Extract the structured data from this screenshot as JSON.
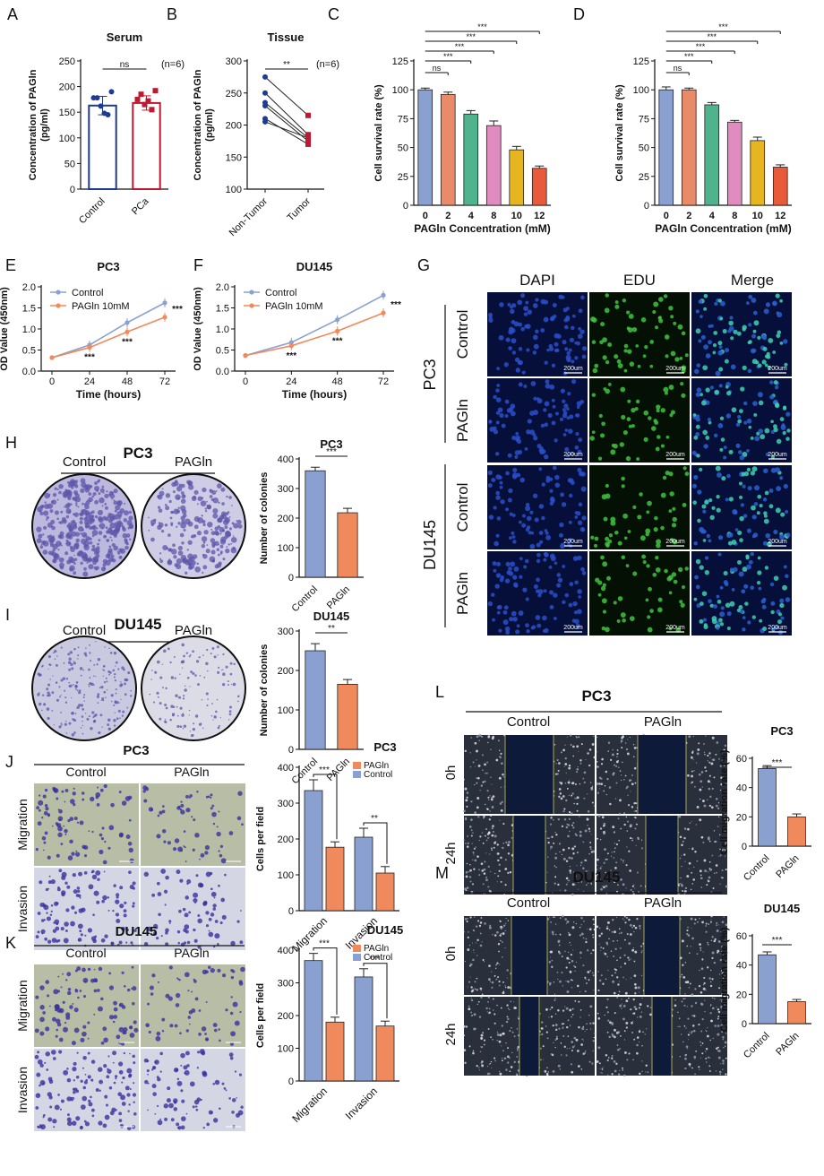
{
  "colors": {
    "control_bar": "#8aa0d0",
    "pagln_bar": "#f08a5d",
    "dose_bars": [
      "#8aa0d0",
      "#e98a68",
      "#4fb38e",
      "#e08cc0",
      "#e6b520",
      "#e95a3b"
    ],
    "line_control": "#8aa0d0",
    "line_pagln": "#f08a5d",
    "serum_control_dot": "#1f3a93",
    "serum_pca_dot": "#c0182f",
    "colony_stain": "#5d55a8",
    "dapi": "#1e3a9a",
    "edu": "#3fc33f",
    "transwell_stain": "#3a2f9e",
    "wound_gap": "#0e1a3a"
  },
  "panel_letters": [
    "A",
    "B",
    "C",
    "D",
    "E",
    "F",
    "G",
    "H",
    "I",
    "J",
    "K",
    "L",
    "M"
  ],
  "panelG": {
    "columns": [
      "DAPI",
      "EDU",
      "Merge"
    ],
    "groups": [
      "PC3",
      "DU145"
    ],
    "rows": [
      "Control",
      "PAGln",
      "Control",
      "PAGln"
    ],
    "scalebar": "200um"
  },
  "panelH": {
    "title": "PC3",
    "labels": [
      "Control",
      "PAGln"
    ]
  },
  "panelI": {
    "title": "DU145",
    "labels": [
      "Control",
      "PAGln"
    ]
  },
  "panelJ": {
    "title": "PC3",
    "columns": [
      "Control",
      "PAGln"
    ],
    "rows": [
      "Migration",
      "Invasion"
    ]
  },
  "panelK": {
    "title": "DU145",
    "columns": [
      "Control",
      "PAGln"
    ],
    "rows": [
      "Migration",
      "Invasion"
    ]
  },
  "panelL": {
    "title": "PC3",
    "columns": [
      "Control",
      "PAGln"
    ],
    "rows": [
      "0h",
      "24h"
    ]
  },
  "panelM": {
    "title": "DU145",
    "columns": [
      "Control",
      "PAGln"
    ],
    "rows": [
      "0h",
      "24h"
    ]
  },
  "chart_data": [
    {
      "id": "A",
      "type": "bar",
      "title": "Serum",
      "ylabel": "Concentration of PAGln\n(pg/ml)",
      "ylim": [
        0,
        250
      ],
      "yticks": [
        0,
        50,
        100,
        150,
        200,
        250
      ],
      "categories": [
        "Control",
        "PCa"
      ],
      "values": [
        163,
        168
      ],
      "errors": [
        18,
        14
      ],
      "points": [
        [
          178,
          178,
          162,
          148,
          145,
          190
        ],
        [
          175,
          185,
          165,
          172,
          155,
          192
        ]
      ],
      "note": "(n=6)",
      "sig": [
        {
          "a": 0,
          "b": 1,
          "text": "ns"
        }
      ]
    },
    {
      "id": "B",
      "type": "line",
      "title": "Tissue",
      "ylabel": "Concentration of PAGln\n(pg/ml)",
      "ylim": [
        100,
        300
      ],
      "yticks": [
        100,
        150,
        200,
        250,
        300
      ],
      "categories": [
        "Non-Tumor",
        "Tumor"
      ],
      "pairs": [
        [
          275,
          215
        ],
        [
          250,
          185
        ],
        [
          235,
          180
        ],
        [
          230,
          175
        ],
        [
          210,
          170
        ],
        [
          205,
          180
        ]
      ],
      "note": "(n=6)",
      "sig": [
        {
          "a": 0,
          "b": 1,
          "text": "**"
        }
      ]
    },
    {
      "id": "C",
      "type": "bar",
      "title": "PC3",
      "xlabel": "PAGln Concentration (mM)",
      "ylabel": "Cell survival rate (%)",
      "ylim": [
        0,
        125
      ],
      "yticks": [
        0,
        25,
        50,
        75,
        100,
        125
      ],
      "categories": [
        "0",
        "2",
        "4",
        "8",
        "10",
        "12"
      ],
      "values": [
        100,
        96,
        79,
        69,
        48,
        32
      ],
      "errors": [
        1.5,
        2,
        3,
        4,
        3,
        2
      ],
      "sig": [
        {
          "a": 0,
          "b": 1,
          "text": "ns"
        },
        {
          "a": 0,
          "b": 2,
          "text": "***"
        },
        {
          "a": 0,
          "b": 3,
          "text": "***"
        },
        {
          "a": 0,
          "b": 4,
          "text": "***"
        },
        {
          "a": 0,
          "b": 5,
          "text": "***"
        }
      ]
    },
    {
      "id": "D",
      "type": "bar",
      "title": "DU145",
      "xlabel": "PAGln Concentration (mM)",
      "ylabel": "Cell survival rate (%)",
      "ylim": [
        0,
        125
      ],
      "yticks": [
        0,
        25,
        50,
        75,
        100,
        125
      ],
      "categories": [
        "0",
        "2",
        "4",
        "8",
        "10",
        "12"
      ],
      "values": [
        100,
        100,
        87,
        72,
        56,
        33
      ],
      "errors": [
        2.5,
        1.5,
        2,
        1.5,
        3,
        2
      ],
      "sig": [
        {
          "a": 0,
          "b": 1,
          "text": "ns"
        },
        {
          "a": 0,
          "b": 2,
          "text": "***"
        },
        {
          "a": 0,
          "b": 3,
          "text": "***"
        },
        {
          "a": 0,
          "b": 4,
          "text": "***"
        },
        {
          "a": 0,
          "b": 5,
          "text": "***"
        }
      ]
    },
    {
      "id": "E",
      "type": "line",
      "title": "PC3",
      "xlabel": "Time (hours)",
      "ylabel": "OD Value (450nm)",
      "ylim": [
        0,
        2.0
      ],
      "yticks": [
        0.0,
        0.5,
        1.0,
        1.5,
        2.0
      ],
      "x": [
        0,
        24,
        48,
        72
      ],
      "series": [
        {
          "name": "Control",
          "values": [
            0.32,
            0.62,
            1.15,
            1.62
          ]
        },
        {
          "name": "PAGln 10mM",
          "values": [
            0.32,
            0.56,
            0.93,
            1.28
          ]
        }
      ],
      "stars": [
        "***",
        "***",
        "***"
      ]
    },
    {
      "id": "F",
      "type": "line",
      "title": "DU145",
      "xlabel": "Time (hours)",
      "ylabel": "OD Value (450nm)",
      "ylim": [
        0,
        2.0
      ],
      "yticks": [
        0.0,
        0.5,
        1.0,
        1.5,
        2.0
      ],
      "x": [
        0,
        24,
        48,
        72
      ],
      "series": [
        {
          "name": "Control",
          "values": [
            0.37,
            0.68,
            1.22,
            1.8
          ]
        },
        {
          "name": "PAGln 10mM",
          "values": [
            0.37,
            0.6,
            0.95,
            1.38
          ]
        }
      ],
      "stars": [
        "***",
        "***",
        "***"
      ]
    },
    {
      "id": "H",
      "type": "bar",
      "title": "PC3",
      "ylabel": "Number of colonies",
      "ylim": [
        0,
        400
      ],
      "yticks": [
        0,
        100,
        200,
        300,
        400
      ],
      "categories": [
        "Control",
        "PAGln"
      ],
      "values": [
        360,
        218
      ],
      "errors": [
        12,
        15
      ],
      "sig": [
        {
          "a": 0,
          "b": 1,
          "text": "***"
        }
      ]
    },
    {
      "id": "I",
      "type": "bar",
      "title": "DU145",
      "ylabel": "Number of colonies",
      "ylim": [
        0,
        300
      ],
      "yticks": [
        0,
        100,
        200,
        300
      ],
      "categories": [
        "Control",
        "PAGln"
      ],
      "values": [
        250,
        165
      ],
      "errors": [
        18,
        12
      ],
      "sig": [
        {
          "a": 0,
          "b": 1,
          "text": "**"
        }
      ]
    },
    {
      "id": "J",
      "type": "bar",
      "title": "PC3",
      "ylabel": "Cells per field",
      "ylim": [
        0,
        400
      ],
      "yticks": [
        0,
        100,
        200,
        300,
        400
      ],
      "categories": [
        "Migration",
        "Invasion"
      ],
      "series": [
        {
          "name": "Control",
          "values": [
            335,
            205
          ],
          "errors": [
            30,
            25
          ]
        },
        {
          "name": "PAGln",
          "values": [
            177,
            105
          ],
          "errors": [
            15,
            18
          ]
        }
      ],
      "legend": [
        "PAGln",
        "Control"
      ],
      "sig": [
        "***",
        "**"
      ]
    },
    {
      "id": "K",
      "type": "bar",
      "title": "DU145",
      "ylabel": "Cells per field",
      "ylim": [
        0,
        400
      ],
      "yticks": [
        0,
        100,
        200,
        300,
        400
      ],
      "categories": [
        "Migration",
        "Invasion"
      ],
      "series": [
        {
          "name": "Control",
          "values": [
            368,
            318
          ],
          "errors": [
            22,
            25
          ]
        },
        {
          "name": "PAGln",
          "values": [
            180,
            168
          ],
          "errors": [
            15,
            15
          ]
        }
      ],
      "legend": [
        "PAGln",
        "Control"
      ],
      "sig": [
        "***",
        "***"
      ]
    },
    {
      "id": "L",
      "type": "bar",
      "title": "PC3",
      "ylabel": "Cell migration rate (%)",
      "ylim": [
        0,
        60
      ],
      "yticks": [
        0,
        20,
        40,
        60
      ],
      "categories": [
        "Control",
        "PAGln"
      ],
      "values": [
        53,
        20
      ],
      "errors": [
        2,
        2
      ],
      "sig": [
        {
          "a": 0,
          "b": 1,
          "text": "***"
        }
      ]
    },
    {
      "id": "M",
      "type": "bar",
      "title": "DU145",
      "ylabel": "Cell migration rate (%)",
      "ylim": [
        0,
        60
      ],
      "yticks": [
        0,
        20,
        40,
        60
      ],
      "categories": [
        "Control",
        "PAGln"
      ],
      "values": [
        47,
        15
      ],
      "errors": [
        2,
        1.5
      ],
      "sig": [
        {
          "a": 0,
          "b": 1,
          "text": "***"
        }
      ]
    }
  ]
}
